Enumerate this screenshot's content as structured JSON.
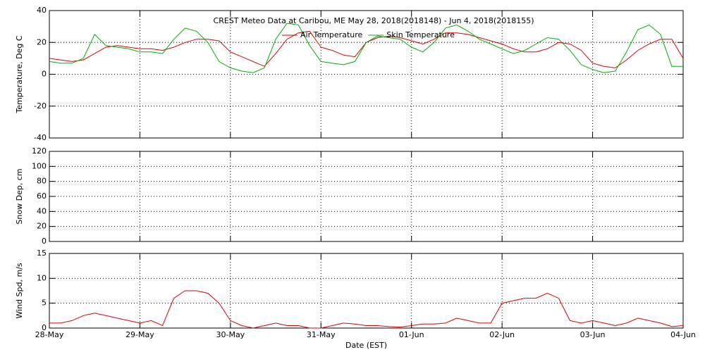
{
  "chart_data": [
    {
      "type": "line",
      "title": "CREST Meteo Data at Caribou, ME   May 28, 2018(2018148) - Jun  4, 2018(2018155)",
      "y_label": "Temperature, Deg C",
      "legend": "top",
      "grid": true,
      "xlim": [
        0,
        7
      ],
      "xticks": [
        1,
        2,
        3,
        4,
        5,
        6
      ],
      "ylim": [
        -40,
        40
      ],
      "yticks": [
        -40,
        -20,
        0,
        20,
        40
      ],
      "x": [
        0,
        0.125,
        0.25,
        0.375,
        0.5,
        0.625,
        0.75,
        0.875,
        1,
        1.125,
        1.25,
        1.375,
        1.5,
        1.625,
        1.75,
        1.875,
        2,
        2.125,
        2.25,
        2.375,
        2.5,
        2.625,
        2.75,
        2.875,
        3,
        3.125,
        3.25,
        3.375,
        3.5,
        3.625,
        3.75,
        3.875,
        4,
        4.125,
        4.25,
        4.375,
        4.5,
        4.625,
        4.75,
        4.875,
        5,
        5.125,
        5.25,
        5.375,
        5.5,
        5.625,
        5.75,
        5.875,
        6,
        6.125,
        6.25,
        6.375,
        6.5,
        6.625,
        6.75,
        6.875,
        7
      ],
      "series": [
        {
          "name": "Air Temperature",
          "color": "#e00000",
          "values": [
            10,
            9,
            8,
            9,
            13,
            17,
            18,
            17,
            16,
            16,
            15,
            17,
            20,
            22,
            22,
            21,
            14,
            11,
            8,
            5,
            13,
            22,
            26,
            27,
            17,
            15,
            12,
            11,
            20,
            23,
            24,
            23,
            21,
            19,
            22,
            26,
            26,
            25,
            23,
            21,
            19,
            16,
            14,
            14,
            16,
            20,
            19,
            15,
            7,
            5,
            4,
            9,
            15,
            19,
            22,
            22,
            10
          ]
        },
        {
          "name": "Skin Temperature",
          "color": "#00b000",
          "values": [
            8,
            7,
            7,
            10,
            25,
            18,
            17,
            16,
            14,
            14,
            13,
            22,
            29,
            27,
            20,
            8,
            4,
            2,
            1,
            4,
            22,
            32,
            31,
            18,
            8,
            7,
            6,
            8,
            20,
            24,
            23,
            22,
            17,
            14,
            20,
            29,
            31,
            27,
            22,
            19,
            16,
            13,
            15,
            19,
            23,
            22,
            15,
            6,
            3,
            1,
            2,
            14,
            28,
            31,
            25,
            5,
            5
          ]
        }
      ]
    },
    {
      "type": "line",
      "y_label": "Snow Dep, cm",
      "grid": true,
      "xlim": [
        0,
        7
      ],
      "xticks": [
        1,
        2,
        3,
        4,
        5,
        6
      ],
      "ylim": [
        0,
        120
      ],
      "yticks": [
        0,
        20,
        40,
        60,
        80,
        100,
        120
      ]
    },
    {
      "type": "line",
      "y_label": "Wind Spd, m/s",
      "x_label": "Date (EST)",
      "grid": true,
      "xlim": [
        0,
        7
      ],
      "xticks": [
        {
          "value": 0,
          "label": "28-May"
        },
        {
          "value": 1,
          "label": "29-May"
        },
        {
          "value": 2,
          "label": "30-May"
        },
        {
          "value": 3,
          "label": "31-May"
        },
        {
          "value": 4,
          "label": "01-Jun"
        },
        {
          "value": 5,
          "label": "02-Jun"
        },
        {
          "value": 6,
          "label": "03-Jun"
        },
        {
          "value": 7,
          "label": "04-Jun"
        }
      ],
      "ylim": [
        0,
        15
      ],
      "yticks": [
        0,
        5,
        10,
        15
      ],
      "x": [
        0,
        0.125,
        0.25,
        0.375,
        0.5,
        0.625,
        0.75,
        0.875,
        1,
        1.125,
        1.25,
        1.375,
        1.5,
        1.625,
        1.75,
        1.875,
        2,
        2.125,
        2.25,
        2.375,
        2.5,
        2.625,
        2.75,
        2.875,
        3,
        3.125,
        3.25,
        3.375,
        3.5,
        3.625,
        3.75,
        3.875,
        4,
        4.125,
        4.25,
        4.375,
        4.5,
        4.625,
        4.75,
        4.875,
        5,
        5.125,
        5.25,
        5.375,
        5.5,
        5.625,
        5.75,
        5.875,
        6,
        6.125,
        6.25,
        6.375,
        6.5,
        6.625,
        6.75,
        6.875,
        7
      ],
      "series": [
        {
          "color": "#e00000",
          "values": [
            1,
            1,
            1.5,
            2.5,
            3,
            2.5,
            2,
            1.5,
            1,
            1.5,
            0.5,
            6,
            7.5,
            7.5,
            7,
            5,
            1.5,
            0.5,
            0,
            0.5,
            1,
            0.5,
            0.5,
            0,
            0,
            0.5,
            1,
            0.8,
            0.5,
            0.5,
            0.3,
            0.2,
            0.5,
            0.8,
            0.8,
            1,
            2,
            1.5,
            1,
            1,
            5,
            5.5,
            6,
            6,
            7,
            6,
            1.5,
            1,
            1.5,
            1,
            0.5,
            1,
            2,
            1.5,
            1,
            0.3,
            0.5
          ]
        }
      ]
    }
  ]
}
